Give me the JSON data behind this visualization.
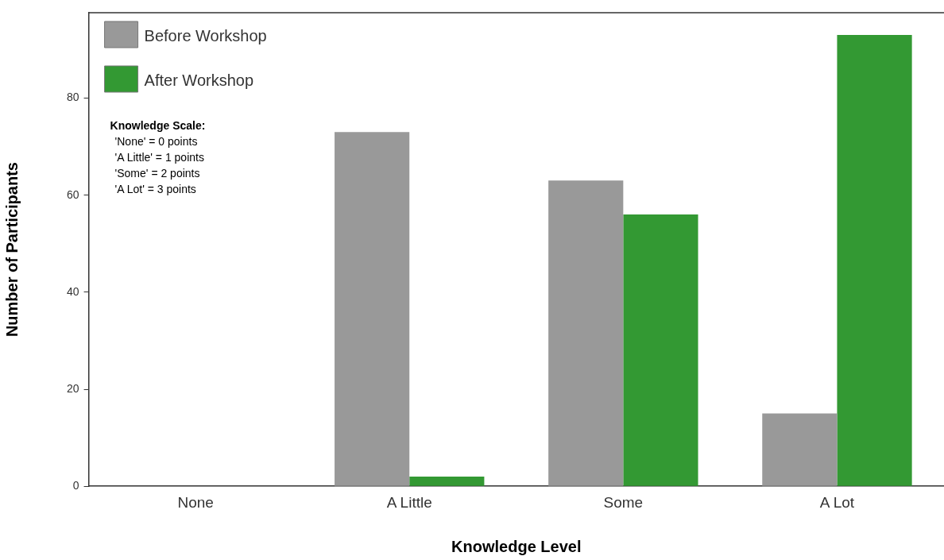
{
  "chart_data": {
    "type": "bar",
    "xlabel": "Knowledge Level",
    "ylabel": "Number of Participants",
    "categories": [
      "None",
      "A Little",
      "Some",
      "A Lot"
    ],
    "series": [
      {
        "name": "Before Workshop",
        "color": "#999999",
        "values": [
          0,
          73,
          63,
          15
        ]
      },
      {
        "name": "After Workshop",
        "color": "#339933",
        "values": [
          0,
          2,
          56,
          93
        ]
      }
    ],
    "ylim": [
      0,
      97.6
    ],
    "yticks": [
      0,
      20,
      40,
      60,
      80
    ],
    "grid": false,
    "legend": "top left",
    "annotations": [
      "Knowledge Scale:",
      "'None' = 0 points",
      "'A Little' = 1 points",
      "'Some' = 2 points",
      "'A Lot' = 3 points"
    ]
  }
}
